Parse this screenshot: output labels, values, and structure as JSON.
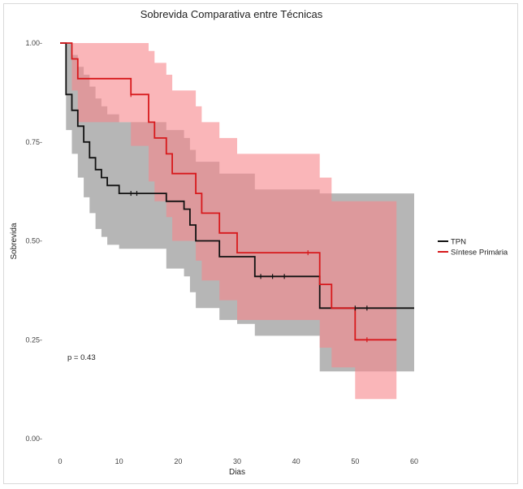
{
  "chart_data": {
    "type": "line",
    "title": "Sobrevida Comparativa entre Técnicas",
    "xlabel": "Dias",
    "ylabel": "Sobrevida",
    "xlim": [
      0,
      60
    ],
    "ylim": [
      0,
      1
    ],
    "x_ticks": [
      0,
      10,
      20,
      30,
      40,
      50,
      60
    ],
    "y_ticks": [
      0,
      0.25,
      0.5,
      0.75,
      1.0
    ],
    "x_tick_labels": [
      "0",
      "10",
      "20",
      "30",
      "40",
      "50",
      "60"
    ],
    "y_tick_labels": [
      "0.00-",
      "0.25-",
      "0.50-",
      "0.75-",
      "1.00-"
    ],
    "grid": false,
    "legend_position": "right",
    "annotation": "p = 0.43",
    "series": [
      {
        "name": "TPN",
        "color": "#111111",
        "band_color": "#a9a9a9",
        "x": [
          0,
          1,
          2,
          3,
          4,
          5,
          6,
          7,
          8,
          10,
          18,
          21,
          22,
          23,
          27,
          30,
          33,
          44,
          60
        ],
        "y": [
          1.0,
          0.87,
          0.83,
          0.79,
          0.75,
          0.71,
          0.68,
          0.66,
          0.64,
          0.62,
          0.6,
          0.58,
          0.54,
          0.5,
          0.46,
          0.46,
          0.41,
          0.33,
          0.33
        ],
        "lower": [
          1.0,
          0.78,
          0.72,
          0.66,
          0.61,
          0.57,
          0.53,
          0.51,
          0.49,
          0.48,
          0.43,
          0.41,
          0.37,
          0.33,
          0.3,
          0.29,
          0.26,
          0.17,
          0.17
        ],
        "upper": [
          1.0,
          1.0,
          0.97,
          0.94,
          0.92,
          0.89,
          0.86,
          0.84,
          0.82,
          0.8,
          0.78,
          0.76,
          0.73,
          0.7,
          0.67,
          0.67,
          0.63,
          0.62,
          0.62
        ],
        "censor_x": [
          12,
          13,
          34,
          36,
          38,
          50,
          52
        ],
        "censor_y": [
          0.62,
          0.62,
          0.41,
          0.41,
          0.41,
          0.33,
          0.33
        ]
      },
      {
        "name": "Síntese Primária",
        "color": "#d7191c",
        "band_color": "#f7868a",
        "x": [
          0,
          2,
          3,
          4,
          12,
          15,
          16,
          18,
          19,
          23,
          24,
          27,
          30,
          44,
          46,
          50,
          57
        ],
        "y": [
          1.0,
          0.96,
          0.91,
          0.91,
          0.87,
          0.8,
          0.76,
          0.72,
          0.67,
          0.62,
          0.57,
          0.52,
          0.47,
          0.39,
          0.33,
          0.25,
          0.25
        ],
        "lower": [
          1.0,
          0.88,
          0.8,
          0.8,
          0.74,
          0.65,
          0.6,
          0.56,
          0.5,
          0.45,
          0.4,
          0.35,
          0.3,
          0.23,
          0.18,
          0.1,
          0.1
        ],
        "upper": [
          1.0,
          1.0,
          1.0,
          1.0,
          1.0,
          0.98,
          0.95,
          0.92,
          0.88,
          0.84,
          0.8,
          0.76,
          0.72,
          0.66,
          0.6,
          0.6,
          0.6
        ],
        "censor_x": [
          12,
          42,
          52
        ],
        "censor_y": [
          0.87,
          0.47,
          0.25
        ]
      }
    ]
  }
}
